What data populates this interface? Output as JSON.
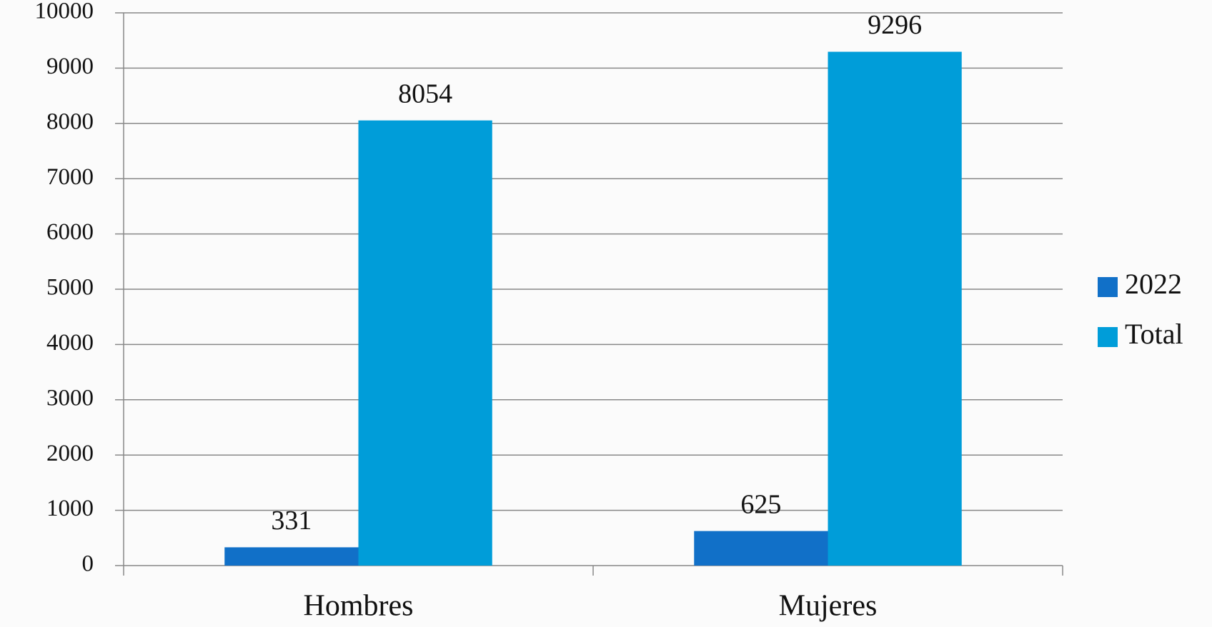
{
  "chart_data": {
    "type": "bar",
    "categories": [
      "Hombres",
      "Mujeres"
    ],
    "series": [
      {
        "name": "2022",
        "color": "#1170c8",
        "values": [
          331,
          625
        ]
      },
      {
        "name": "Total",
        "color": "#009dd9",
        "values": [
          8054,
          9296
        ]
      }
    ],
    "ylim": [
      0,
      10000
    ],
    "yticks": [
      0,
      1000,
      2000,
      3000,
      4000,
      5000,
      6000,
      7000,
      8000,
      9000,
      10000
    ],
    "grid": true,
    "legend": "right"
  }
}
